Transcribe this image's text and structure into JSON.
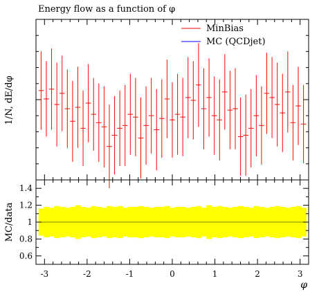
{
  "chart_data": {
    "type": "scatter",
    "title": "Energy flow as a function of φ",
    "xlabel": "φ",
    "ylabel_top": "1/N, dE/dφ",
    "ylabel_bottom": "MC/data",
    "xlim": [
      -3.2,
      3.2
    ],
    "xticks": [
      -3,
      -2,
      -1,
      0,
      1,
      2,
      3
    ],
    "xtick_labels": [
      "-3",
      "-2",
      "-1",
      "0",
      "1",
      "2",
      "3"
    ],
    "legend": {
      "placement": "top-right",
      "entries": [
        {
          "label": "MinBias",
          "color": "#ff0000"
        },
        {
          "label": "MC (QCDjet)",
          "color": "#0000ff"
        }
      ]
    },
    "series": [
      {
        "name": "MinBias",
        "color": "#ff0000",
        "x_min": -3.1416,
        "x_max": 3.1416,
        "values": [
          0.58,
          0.52,
          0.59,
          0.48,
          0.56,
          0.45,
          0.36,
          0.46,
          0.31,
          0.49,
          0.41,
          0.35,
          0.32,
          0.18,
          0.26,
          0.31,
          0.33,
          0.41,
          0.39,
          0.24,
          0.33,
          0.4,
          0.3,
          0.38,
          0.52,
          0.37,
          0.41,
          0.39,
          0.53,
          0.51,
          0.62,
          0.45,
          0.53,
          0.4,
          0.37,
          0.57,
          0.44,
          0.45,
          0.25,
          0.26,
          0.31,
          0.4,
          0.33,
          0.56,
          0.53,
          0.48,
          0.42,
          0.57,
          0.35,
          0.47,
          0.34
        ],
        "errors": [
          0.28,
          0.27,
          0.29,
          0.3,
          0.27,
          0.28,
          0.29,
          0.29,
          0.27,
          0.28,
          0.26,
          0.28,
          0.29,
          0.3,
          0.28,
          0.27,
          0.29,
          0.29,
          0.28,
          0.29,
          0.28,
          0.27,
          0.29,
          0.28,
          0.28,
          0.27,
          0.29,
          0.28,
          0.29,
          0.28,
          0.3,
          0.29,
          0.28,
          0.28,
          0.29,
          0.27,
          0.28,
          0.29,
          0.28,
          0.29,
          0.28,
          0.29,
          0.28,
          0.29,
          0.29,
          0.3,
          0.28,
          0.29,
          0.27,
          0.28,
          0.28
        ]
      }
    ],
    "ratio_panel": {
      "ylim": [
        0.5,
        1.5
      ],
      "yticks": [
        0.6,
        0.8,
        1.0,
        1.2,
        1.4
      ],
      "ytick_labels": [
        "0.6",
        "0.8",
        "1",
        "1.2",
        "1.4"
      ],
      "reference_line": 1.0,
      "band_color": "#ffff00",
      "band_half_width": [
        0.16,
        0.18,
        0.17,
        0.19,
        0.18,
        0.17,
        0.18,
        0.2,
        0.18,
        0.17,
        0.19,
        0.18,
        0.17,
        0.19,
        0.18,
        0.19,
        0.17,
        0.18,
        0.18,
        0.19,
        0.18,
        0.17,
        0.18,
        0.18,
        0.19,
        0.17,
        0.18,
        0.18,
        0.17,
        0.18,
        0.19,
        0.17,
        0.2,
        0.18,
        0.19,
        0.18,
        0.17,
        0.18,
        0.19,
        0.18,
        0.17,
        0.19,
        0.18,
        0.17,
        0.18,
        0.19,
        0.18,
        0.17,
        0.18,
        0.19,
        0.17
      ]
    }
  }
}
